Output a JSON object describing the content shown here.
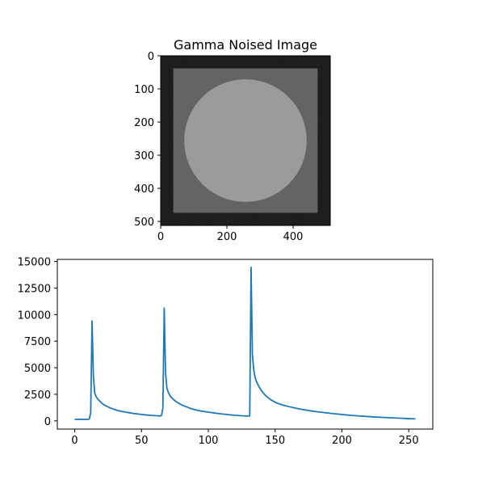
{
  "figure": {
    "background": "#ffffff"
  },
  "chart_data": [
    {
      "type": "image",
      "title": "Gamma Noised Image",
      "xlabel": "",
      "ylabel": "",
      "xlim": [
        0,
        512
      ],
      "ylim": [
        512,
        0
      ],
      "xticks": [
        0,
        200,
        400
      ],
      "yticks": [
        0,
        100,
        200,
        300,
        400,
        500
      ],
      "content": {
        "image_size": 512,
        "background_intensity": 28,
        "square_range": [
          38,
          474
        ],
        "square_intensity": 100,
        "circle_center": [
          256,
          256
        ],
        "circle_radius": 185,
        "circle_intensity": 155,
        "colormap": "gray"
      }
    },
    {
      "type": "line",
      "title": "",
      "xlabel": "",
      "ylabel": "",
      "xlim": [
        -13,
        268
      ],
      "ylim": [
        -775,
        15195
      ],
      "xticks": [
        0,
        50,
        100,
        150,
        200,
        250
      ],
      "yticks": [
        0,
        2500,
        5000,
        7500,
        10000,
        12500,
        15000
      ],
      "grid": false,
      "line_color": "#1f77b4",
      "series": [
        {
          "x": [
            0,
            1,
            2,
            3,
            4,
            5,
            6,
            7,
            8,
            9,
            10,
            11,
            12,
            13,
            14,
            15,
            16,
            17,
            18,
            20,
            22,
            24,
            26,
            28,
            30,
            32,
            35,
            38,
            41,
            44,
            47,
            50,
            53,
            56,
            59,
            62,
            64,
            65,
            66,
            67,
            68,
            69,
            70,
            71,
            72,
            74,
            76,
            78,
            80,
            82,
            84,
            86,
            88,
            90,
            92,
            95,
            98,
            101,
            104,
            107,
            110,
            113,
            116,
            119,
            122,
            125,
            128,
            130,
            131,
            132,
            133,
            134,
            135,
            136,
            138,
            140,
            142,
            144,
            146,
            148,
            150,
            153,
            156,
            160,
            165,
            170,
            175,
            180,
            185,
            190,
            195,
            200,
            205,
            210,
            215,
            220,
            225,
            230,
            235,
            240,
            245,
            250,
            255
          ],
          "y": [
            150,
            140,
            150,
            135,
            145,
            140,
            150,
            140,
            135,
            150,
            140,
            200,
            800,
            9400,
            4200,
            2600,
            2300,
            2100,
            1950,
            1700,
            1500,
            1380,
            1250,
            1150,
            1060,
            980,
            900,
            820,
            760,
            700,
            650,
            600,
            560,
            530,
            500,
            480,
            450,
            520,
            1200,
            10600,
            4500,
            3100,
            2700,
            2450,
            2250,
            2000,
            1800,
            1650,
            1500,
            1400,
            1300,
            1200,
            1120,
            1050,
            980,
            920,
            860,
            800,
            750,
            700,
            650,
            610,
            570,
            540,
            510,
            480,
            460,
            450,
            470,
            14450,
            6200,
            4800,
            4100,
            3700,
            3200,
            2800,
            2500,
            2250,
            2050,
            1900,
            1750,
            1600,
            1480,
            1350,
            1200,
            1080,
            970,
            880,
            800,
            730,
            660,
            600,
            540,
            490,
            440,
            400,
            360,
            330,
            300,
            270,
            240,
            210,
            185
          ]
        }
      ]
    }
  ]
}
